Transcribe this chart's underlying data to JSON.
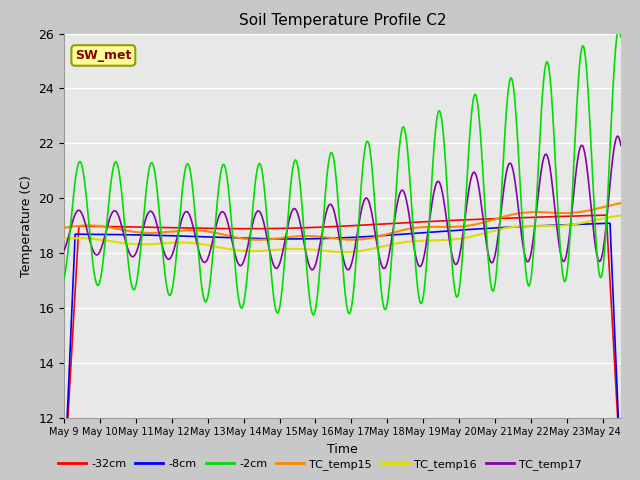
{
  "title": "Soil Temperature Profile C2",
  "xlabel": "Time",
  "ylabel": "Temperature (C)",
  "ylim": [
    12,
    26
  ],
  "xlim": [
    0,
    15.5
  ],
  "annotation_text": "SW_met",
  "annotation_color": "#8B0000",
  "annotation_bg": "#FFFF99",
  "annotation_border": "#999900",
  "fig_bg": "#C8C8C8",
  "plot_bg": "#E8E8E8",
  "grid_color": "#FFFFFF",
  "x_tick_labels": [
    "May 9",
    "May 10",
    "May 11",
    "May 12",
    "May 13",
    "May 14",
    "May 15",
    "May 16",
    "May 17",
    "May 18",
    "May 19",
    "May 20",
    "May 21",
    "May 22",
    "May 23",
    "May 24"
  ],
  "series_order": [
    "-32cm",
    "-8cm",
    "-2cm",
    "TC_temp15",
    "TC_temp16",
    "TC_temp17"
  ],
  "series": {
    "-32cm": {
      "color": "#FF0000",
      "linewidth": 1.2
    },
    "-8cm": {
      "color": "#0000FF",
      "linewidth": 1.2
    },
    "-2cm": {
      "color": "#00DD00",
      "linewidth": 1.2
    },
    "TC_temp15": {
      "color": "#FF8800",
      "linewidth": 1.5
    },
    "TC_temp16": {
      "color": "#DDDD00",
      "linewidth": 1.5
    },
    "TC_temp17": {
      "color": "#8800AA",
      "linewidth": 1.2
    }
  }
}
